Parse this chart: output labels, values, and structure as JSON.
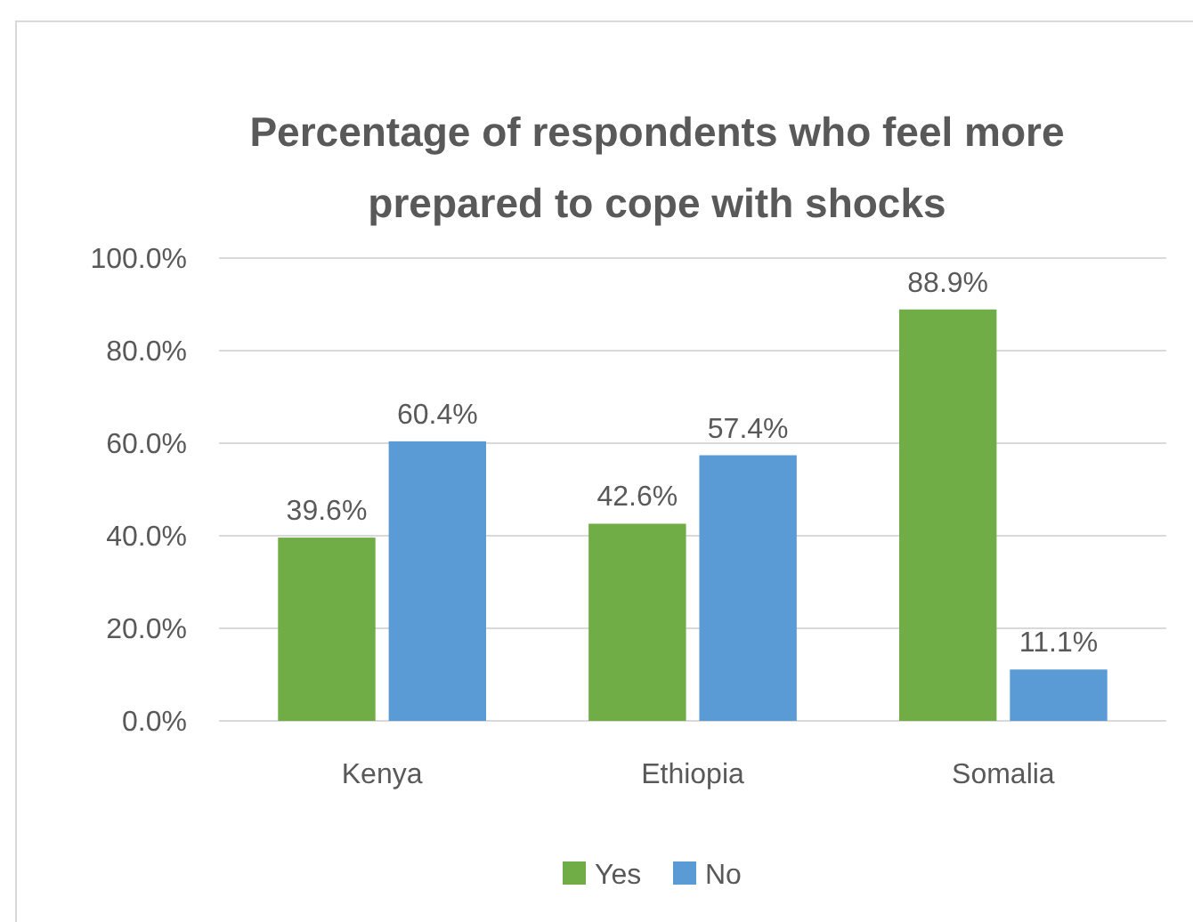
{
  "chart_data": {
    "type": "bar",
    "title": "Percentage of respondents who feel more prepared to cope with shocks",
    "categories": [
      "Kenya",
      "Ethiopia",
      "Somalia"
    ],
    "series": [
      {
        "name": "Yes",
        "color": "#70ad47",
        "values": [
          39.6,
          42.6,
          88.9
        ],
        "value_labels": [
          "39.6%",
          "42.6%",
          "88.9%"
        ]
      },
      {
        "name": "No",
        "color": "#5b9bd5",
        "values": [
          60.4,
          57.4,
          11.1
        ],
        "value_labels": [
          "60.4%",
          "57.4%",
          "11.1%"
        ]
      }
    ],
    "ylim": [
      0,
      100
    ],
    "yticks": [
      {
        "value": 0,
        "label": "0.0%"
      },
      {
        "value": 20,
        "label": "20.0%"
      },
      {
        "value": 40,
        "label": "40.0%"
      },
      {
        "value": 60,
        "label": "60.0%"
      },
      {
        "value": 80,
        "label": "80.0%"
      },
      {
        "value": 100,
        "label": "100.0%"
      }
    ],
    "grid": "y",
    "legend": "bottom"
  }
}
